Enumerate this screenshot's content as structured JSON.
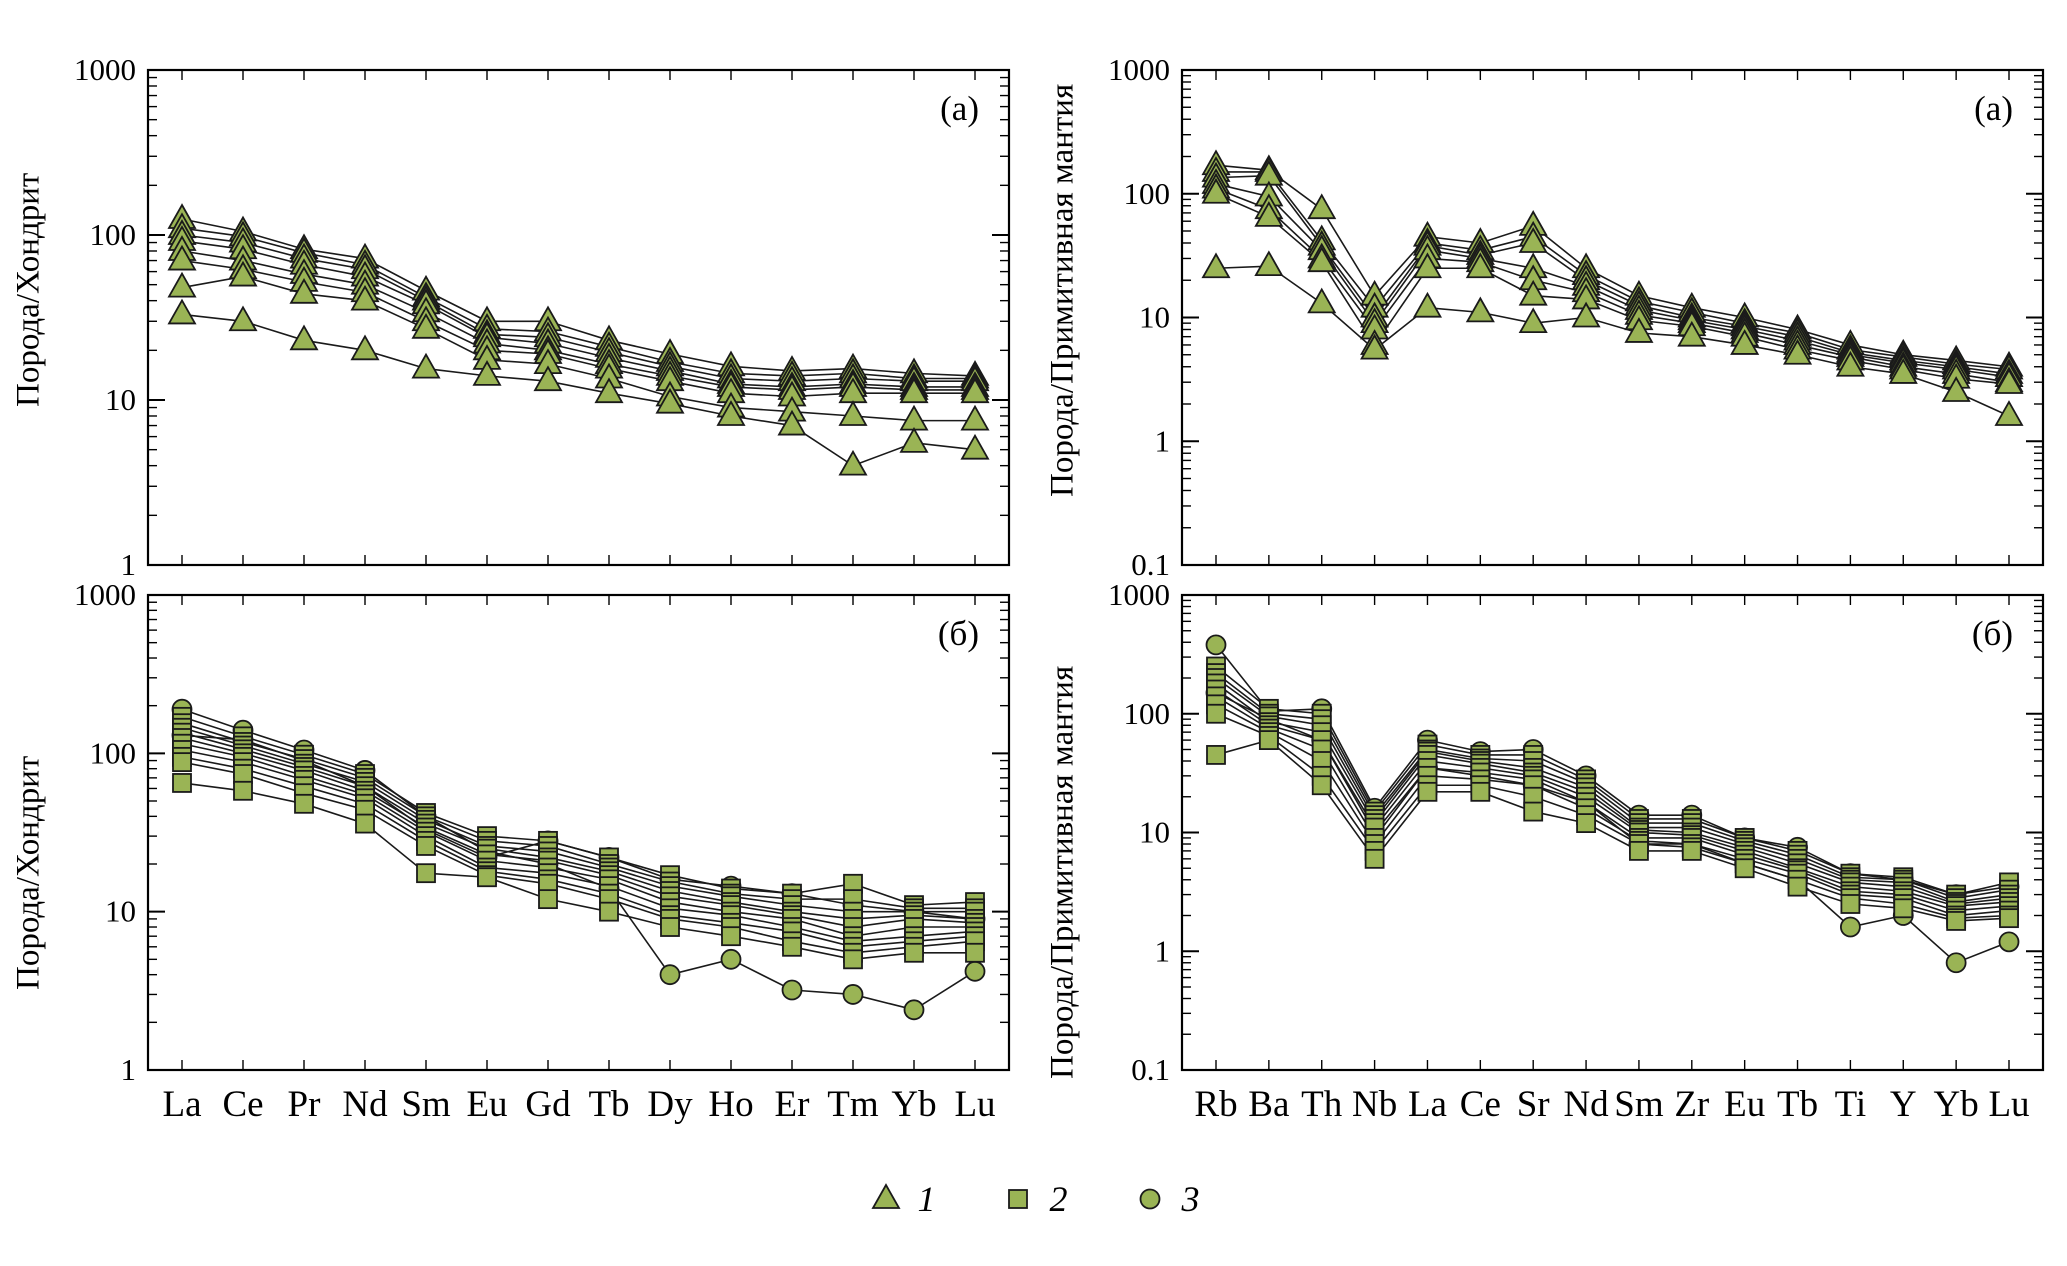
{
  "colors": {
    "marker_fill": "#9ab455",
    "marker_stroke": "#1a1a1a",
    "line_color": "#1a1a1a",
    "frame_color": "#000000"
  },
  "legend": {
    "items": [
      {
        "label": "1",
        "marker": "triangle"
      },
      {
        "label": "2",
        "marker": "square"
      },
      {
        "label": "3",
        "marker": "circle"
      }
    ]
  },
  "chart_data": [
    {
      "id": "chondrite-a",
      "type": "line",
      "panel_label": "(а)",
      "ylabel": "Порода/Хондрит",
      "categories": [
        "La",
        "Ce",
        "Pr",
        "Nd",
        "Sm",
        "Eu",
        "Gd",
        "Tb",
        "Dy",
        "Ho",
        "Er",
        "Tm",
        "Yb",
        "Lu"
      ],
      "ylim": [
        1,
        1000
      ],
      "yticks": [
        1,
        10,
        100,
        1000
      ],
      "grid": false,
      "show_x_labels": false,
      "series": [
        {
          "name": "1",
          "marker": "triangle",
          "values": [
            125,
            105,
            82,
            72,
            46,
            30,
            30,
            23,
            19,
            16,
            15,
            15.5,
            14.5,
            14
          ]
        },
        {
          "name": "1",
          "marker": "triangle",
          "values": [
            110,
            98,
            78,
            66,
            42,
            27,
            26,
            21,
            17,
            14.5,
            14,
            14.5,
            13.5,
            13.5
          ]
        },
        {
          "name": "1",
          "marker": "triangle",
          "values": [
            100,
            90,
            72,
            62,
            40,
            25,
            24,
            19.5,
            16,
            13.5,
            13,
            13.5,
            13,
            13
          ]
        },
        {
          "name": "1",
          "marker": "triangle",
          "values": [
            92,
            82,
            66,
            56,
            38,
            24,
            22,
            18,
            15,
            12.5,
            12,
            12.5,
            12,
            12
          ]
        },
        {
          "name": "1",
          "marker": "triangle",
          "values": [
            80,
            70,
            58,
            50,
            34,
            22,
            20,
            16.5,
            14,
            12,
            11.5,
            12,
            11.5,
            11.5
          ]
        },
        {
          "name": "1",
          "marker": "triangle",
          "values": [
            70,
            62,
            52,
            45,
            30,
            20,
            19,
            15.5,
            13,
            11,
            10.5,
            11,
            11,
            11
          ]
        },
        {
          "name": "1",
          "marker": "triangle",
          "values": [
            48,
            56,
            44,
            40,
            27,
            17.5,
            16.5,
            13.5,
            10.5,
            9,
            8.5,
            8,
            7.5,
            7.5
          ]
        },
        {
          "name": "1",
          "marker": "triangle",
          "values": [
            33,
            30,
            23,
            20,
            15.5,
            14,
            13,
            11,
            9.5,
            8,
            7,
            4,
            5.5,
            5
          ]
        }
      ]
    },
    {
      "id": "primitive-mantle-a",
      "type": "line",
      "panel_label": "(а)",
      "ylabel": "Порода/Примитивная мантия",
      "categories": [
        "Rb",
        "Ba",
        "Th",
        "Nb",
        "La",
        "Ce",
        "Sr",
        "Nd",
        "Sm",
        "Zr",
        "Eu",
        "Tb",
        "Ti",
        "Y",
        "Yb",
        "Lu"
      ],
      "ylim": [
        0.1,
        1000
      ],
      "yticks": [
        0.1,
        1,
        10,
        100,
        1000
      ],
      "grid": false,
      "show_x_labels": false,
      "series": [
        {
          "name": "1",
          "marker": "triangle",
          "values": [
            170,
            155,
            75,
            15,
            45,
            40,
            55,
            25,
            15,
            12,
            10,
            8,
            6,
            5,
            4.5,
            4
          ]
        },
        {
          "name": "1",
          "marker": "triangle",
          "values": [
            150,
            150,
            42,
            12,
            40,
            35,
            45,
            22,
            13.5,
            11,
            9,
            7.5,
            5.5,
            4.8,
            4.2,
            3.8
          ]
        },
        {
          "name": "1",
          "marker": "triangle",
          "values": [
            135,
            140,
            38,
            10,
            38,
            32,
            40,
            20,
            12.5,
            10,
            8.5,
            7,
            5.2,
            4.5,
            4,
            3.5
          ]
        },
        {
          "name": "1",
          "marker": "triangle",
          "values": [
            120,
            95,
            35,
            9,
            35,
            30,
            25,
            18,
            11.5,
            9.5,
            8,
            6.5,
            5,
            4.3,
            3.8,
            3.3
          ]
        },
        {
          "name": "1",
          "marker": "triangle",
          "values": [
            110,
            75,
            30,
            8,
            30,
            28,
            20,
            16,
            10.5,
            9,
            7.5,
            6,
            4.8,
            4,
            3.5,
            3
          ]
        },
        {
          "name": "1",
          "marker": "triangle",
          "values": [
            100,
            65,
            28,
            6,
            25,
            25,
            15,
            14,
            9.5,
            8.5,
            7,
            5.5,
            4.5,
            3.8,
            3.2,
            2.9
          ]
        },
        {
          "name": "1",
          "marker": "triangle",
          "values": [
            25,
            26,
            13,
            5.5,
            12,
            11,
            9,
            10,
            7.5,
            7,
            6,
            5,
            4,
            3.5,
            2.5,
            1.6
          ]
        }
      ]
    },
    {
      "id": "chondrite-b",
      "type": "line",
      "panel_label": "(б)",
      "ylabel": "Порода/Хондрит",
      "categories": [
        "La",
        "Ce",
        "Pr",
        "Nd",
        "Sm",
        "Eu",
        "Gd",
        "Tb",
        "Dy",
        "Ho",
        "Er",
        "Tm",
        "Yb",
        "Lu"
      ],
      "ylim": [
        1,
        1000
      ],
      "yticks": [
        1,
        10,
        100,
        1000
      ],
      "grid": false,
      "show_x_labels": true,
      "series": [
        {
          "name": "3",
          "marker": "circle",
          "values": [
            190,
            140,
            105,
            78,
            40,
            24,
            20,
            14,
            4,
            5,
            3.2,
            3,
            2.4,
            4.2
          ]
        },
        {
          "name": "3",
          "marker": "circle",
          "values": [
            130,
            122,
            90,
            62,
            33,
            22,
            28,
            22,
            16,
            14.5,
            13,
            11,
            10,
            9
          ]
        },
        {
          "name": "2",
          "marker": "square",
          "values": [
            170,
            128,
            98,
            74,
            42,
            30,
            28,
            22,
            17,
            14,
            13,
            15,
            11,
            11.5
          ]
        },
        {
          "name": "2",
          "marker": "square",
          "values": [
            155,
            118,
            92,
            70,
            40,
            28,
            26,
            20,
            15.5,
            13,
            12,
            12,
            10.5,
            10.5
          ]
        },
        {
          "name": "2",
          "marker": "square",
          "values": [
            145,
            112,
            86,
            66,
            38,
            26,
            24,
            19,
            14.5,
            12.5,
            11,
            10,
            10,
            10
          ]
        },
        {
          "name": "2",
          "marker": "square",
          "values": [
            135,
            106,
            82,
            62,
            36,
            25,
            22,
            18,
            13.5,
            11.5,
            10,
            9,
            9.5,
            9
          ]
        },
        {
          "name": "2",
          "marker": "square",
          "values": [
            125,
            100,
            78,
            58,
            34,
            23,
            21,
            17,
            12.5,
            11,
            9.5,
            8,
            9,
            8.5
          ]
        },
        {
          "name": "2",
          "marker": "square",
          "values": [
            115,
            95,
            72,
            55,
            32,
            21,
            19,
            16,
            11.5,
            10,
            9,
            7,
            8,
            8
          ]
        },
        {
          "name": "2",
          "marker": "square",
          "values": [
            105,
            88,
            68,
            52,
            30,
            19,
            17.5,
            14.5,
            10.5,
            9.5,
            8,
            6.5,
            7,
            7.5
          ]
        },
        {
          "name": "2",
          "marker": "square",
          "values": [
            95,
            80,
            62,
            48,
            28,
            18,
            16,
            13,
            9.5,
            8.5,
            7.5,
            6,
            6.5,
            7
          ]
        },
        {
          "name": "2",
          "marker": "square",
          "values": [
            88,
            74,
            56,
            44,
            26,
            17,
            15,
            12,
            9,
            8,
            6.5,
            5.5,
            6,
            6.5
          ]
        },
        {
          "name": "2",
          "marker": "square",
          "values": [
            65,
            58,
            48,
            36,
            17.5,
            16.5,
            12,
            10,
            8,
            7,
            6,
            5,
            5.5,
            5.5
          ]
        }
      ]
    },
    {
      "id": "primitive-mantle-b",
      "type": "line",
      "panel_label": "(б)",
      "ylabel": "Порода/Примитивная мантия",
      "categories": [
        "Rb",
        "Ba",
        "Th",
        "Nb",
        "La",
        "Ce",
        "Sr",
        "Nd",
        "Sm",
        "Zr",
        "Eu",
        "Tb",
        "Ti",
        "Y",
        "Yb",
        "Lu"
      ],
      "ylim": [
        0.1,
        1000
      ],
      "yticks": [
        0.1,
        1,
        10,
        100,
        1000
      ],
      "grid": false,
      "show_x_labels": true,
      "series": [
        {
          "name": "3",
          "marker": "circle",
          "values": [
            380,
            105,
            110,
            16,
            60,
            48,
            50,
            30,
            14,
            14,
            9,
            7.5,
            4.5,
            4,
            3,
            3.5
          ]
        },
        {
          "name": "3",
          "marker": "circle",
          "values": [
            150,
            90,
            60,
            10,
            35,
            30,
            25,
            18,
            8,
            8,
            5.5,
            4,
            1.6,
            2,
            0.8,
            1.2
          ]
        },
        {
          "name": "2",
          "marker": "square",
          "values": [
            250,
            110,
            100,
            15,
            55,
            45,
            45,
            28,
            13,
            13,
            9,
            7,
            4.5,
            4.2,
            3,
            3.8
          ]
        },
        {
          "name": "2",
          "marker": "square",
          "values": [
            220,
            100,
            90,
            14,
            50,
            42,
            40,
            26,
            12,
            12,
            8.5,
            6.5,
            4.2,
            4,
            2.8,
            3.3
          ]
        },
        {
          "name": "2",
          "marker": "square",
          "values": [
            200,
            95,
            80,
            13,
            48,
            40,
            35,
            24,
            11,
            11,
            8,
            6,
            4,
            3.8,
            2.6,
            3
          ]
        },
        {
          "name": "2",
          "marker": "square",
          "values": [
            180,
            85,
            70,
            12,
            45,
            38,
            32,
            22,
            10.5,
            10,
            7.5,
            5.5,
            3.8,
            3.5,
            2.5,
            2.8
          ]
        },
        {
          "name": "2",
          "marker": "square",
          "values": [
            160,
            80,
            60,
            11,
            40,
            35,
            30,
            20,
            10,
            9.5,
            7,
            5,
            3.5,
            3.2,
            2.4,
            2.6
          ]
        },
        {
          "name": "2",
          "marker": "square",
          "values": [
            140,
            75,
            50,
            9,
            35,
            32,
            28,
            18,
            9,
            9,
            6.5,
            4.8,
            3.2,
            3,
            2.2,
            2.4
          ]
        },
        {
          "name": "2",
          "marker": "square",
          "values": [
            120,
            70,
            40,
            8,
            30,
            28,
            25,
            16,
            8.5,
            8,
            6,
            4.5,
            3,
            2.8,
            2,
            2.2
          ]
        },
        {
          "name": "2",
          "marker": "square",
          "values": [
            100,
            65,
            30,
            7,
            25,
            25,
            20,
            14,
            8,
            7.5,
            5.5,
            4,
            2.8,
            2.5,
            1.9,
            2
          ]
        },
        {
          "name": "2",
          "marker": "square",
          "values": [
            45,
            60,
            25,
            6,
            22,
            22,
            15,
            12,
            7,
            7,
            5,
            3.5,
            2.5,
            2.3,
            1.8,
            1.9
          ]
        }
      ]
    }
  ]
}
